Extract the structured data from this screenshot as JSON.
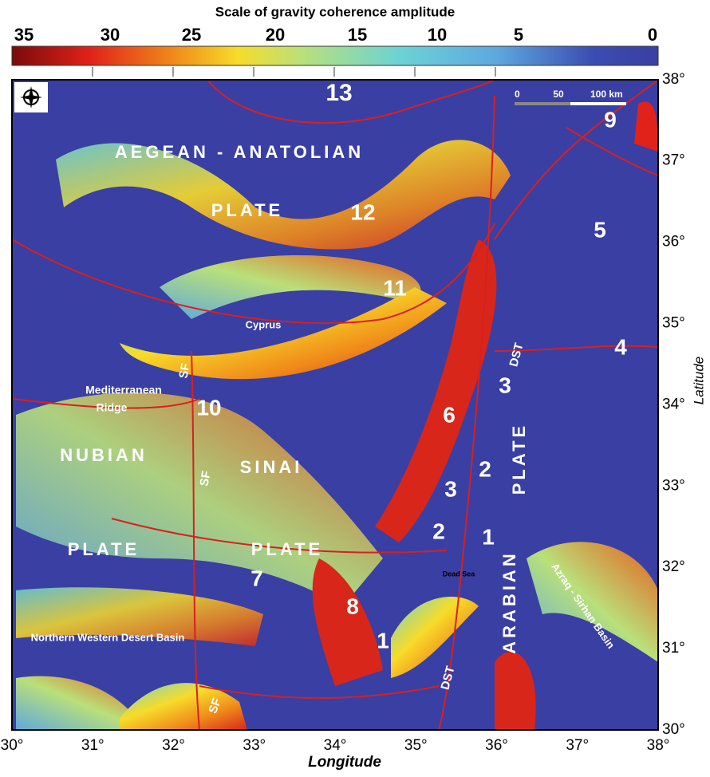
{
  "colorbar": {
    "title": "Scale of gravity coherence amplitude",
    "ticks": [
      "35",
      "30",
      "25",
      "20",
      "15",
      "10",
      "5",
      "0"
    ]
  },
  "axes": {
    "x_label": "Longitude",
    "y_label": "Latitude",
    "x_ticks": [
      "30°",
      "31°",
      "32°",
      "33°",
      "34°",
      "35°",
      "36°",
      "37°",
      "38°"
    ],
    "y_ticks": [
      "30°",
      "31°",
      "32°",
      "33°",
      "34°",
      "35°",
      "36°",
      "37°",
      "38°"
    ]
  },
  "scale_bar": [
    "0",
    "50",
    "100 km"
  ],
  "labels": [
    "13",
    "9",
    "AEGEAN - ANATOLIAN",
    "PLATE",
    "12",
    "5",
    "11",
    "Cyprus",
    "4",
    "DST",
    "SF",
    "Mediterranean",
    "Ridge",
    "3",
    "10",
    "6",
    "PLATE",
    "2",
    "NUBIAN",
    "SF",
    "SINAI",
    "3",
    "2",
    "1",
    "ARABIAN",
    "PLATE",
    "PLATE",
    "7",
    "Azraq - Sirhan Basin",
    "Dead Sea",
    "8",
    "1",
    "Northern Western Desert Basin",
    "SF",
    "DST"
  ]
}
